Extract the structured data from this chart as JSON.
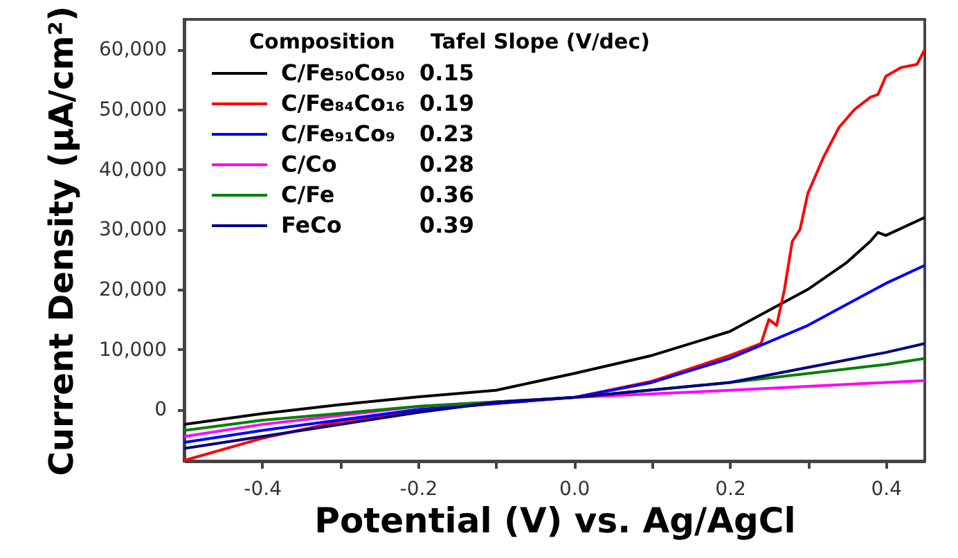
{
  "chart_data": {
    "type": "line",
    "xlabel": "Potential (V) vs. Ag/AgCl",
    "ylabel": "Current Density (μA/cm²)",
    "legend_title": "Composition",
    "annotations": [
      "Tafel Slope (V/dec)",
      "0.15",
      "0.19",
      "0.23",
      "0.28",
      "0.36",
      "0.39"
    ],
    "xlim": [
      -0.5,
      0.45
    ],
    "ylim": [
      -8600,
      65000
    ],
    "xticks": [
      -0.4,
      {
        "value": -0.3,
        "label": null
      },
      -0.2,
      {
        "value": -0.1,
        "label": null
      },
      {
        "value": 0,
        "label": "0.0"
      },
      {
        "value": 0.1,
        "label": null
      },
      0.2,
      {
        "value": 0.3,
        "label": null
      },
      0.4
    ],
    "yticks": [
      {
        "value": 0,
        "label": "0"
      },
      {
        "value": 10000,
        "label": "10,000"
      },
      {
        "value": 20000,
        "label": "20,000"
      },
      {
        "value": 30000,
        "label": "30,000"
      },
      {
        "value": 40000,
        "label": "40,000"
      },
      {
        "value": 50000,
        "label": "50,000"
      },
      {
        "value": 60000,
        "label": "60,000"
      }
    ],
    "legend": "top left",
    "grid": false,
    "line_style": "solid",
    "series": [
      {
        "name": "C/Fe₅₀Co₅₀",
        "color": "#000000",
        "x": [
          -0.5,
          -0.4,
          -0.3,
          -0.2,
          -0.1,
          0,
          0.1,
          0.2,
          0.3,
          0.35,
          0.38,
          0.39,
          0.4,
          0.45
        ],
        "values": [
          -2500,
          -700,
          800,
          2100,
          3200,
          6000,
          9000,
          13000,
          20000,
          24500,
          28000,
          29500,
          29000,
          32000
        ]
      },
      {
        "name": "C/Fe₈₄Co₁₆",
        "color": "#ff0000",
        "x": [
          -0.5,
          -0.4,
          -0.3,
          -0.2,
          -0.1,
          0,
          0.1,
          0.2,
          0.22,
          0.24,
          0.25,
          0.26,
          0.27,
          0.28,
          0.29,
          0.3,
          0.32,
          0.34,
          0.36,
          0.38,
          0.39,
          0.4,
          0.42,
          0.44,
          0.45
        ],
        "values": [
          -8500,
          -4800,
          -2000,
          -200,
          1000,
          2000,
          4700,
          9000,
          10000,
          11000,
          15000,
          14000,
          20000,
          28000,
          30000,
          36000,
          42000,
          47000,
          50000,
          52000,
          52500,
          55500,
          57000,
          57500,
          60000
        ]
      },
      {
        "name": "C/Fe₉₁Co₉",
        "color": "#0000ff",
        "x": [
          -0.5,
          -0.4,
          -0.2,
          0,
          0.1,
          0.2,
          0.3,
          0.4,
          0.45
        ],
        "values": [
          -5500,
          -3500,
          0,
          2000,
          4500,
          8500,
          14000,
          21000,
          24000
        ]
      },
      {
        "name": "C/Co",
        "color": "#ff00ff",
        "x": [
          -0.5,
          -0.4,
          -0.2,
          0,
          0.2,
          0.4,
          0.45
        ],
        "values": [
          -4500,
          -2500,
          500,
          2000,
          3200,
          4500,
          4800
        ]
      },
      {
        "name": "C/Fe",
        "color": "#008000",
        "x": [
          -0.5,
          -0.4,
          -0.2,
          0,
          0.2,
          0.3,
          0.4,
          0.45
        ],
        "values": [
          -3500,
          -1800,
          500,
          2000,
          4500,
          6000,
          7500,
          8500
        ]
      },
      {
        "name": "FeCo",
        "color": "#000080",
        "x": [
          -0.5,
          -0.4,
          -0.2,
          -0.1,
          0,
          0.2,
          0.3,
          0.4,
          0.45
        ],
        "values": [
          -6500,
          -4500,
          -500,
          1200,
          2000,
          4500,
          7000,
          9500,
          11000
        ]
      }
    ]
  }
}
